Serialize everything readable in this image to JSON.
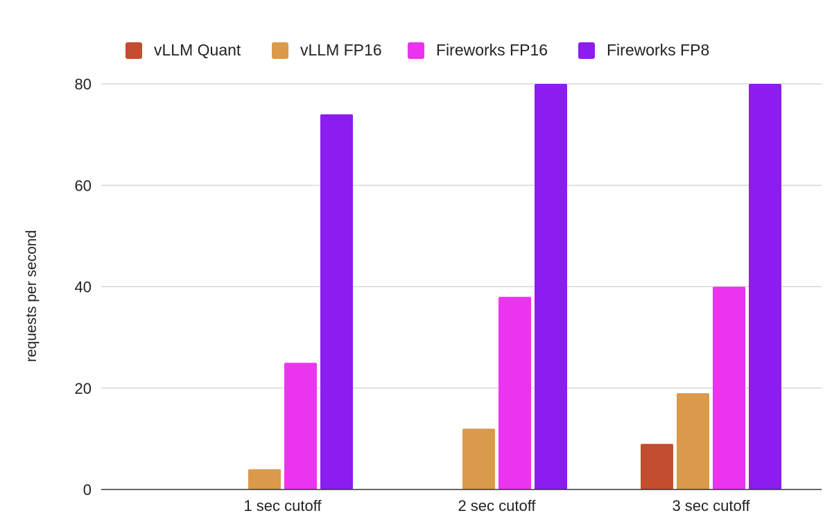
{
  "chart_data": {
    "type": "bar",
    "title": "",
    "xlabel": "",
    "ylabel": "requests per second",
    "ylim": [
      0,
      80
    ],
    "yticks": [
      0,
      20,
      40,
      60,
      80
    ],
    "grid": true,
    "legend_position": "top",
    "categories": [
      "1 sec cutoff",
      "2 sec cutoff",
      "3 sec cutoff"
    ],
    "series": [
      {
        "name": "vLLM Quant",
        "color": "#c34d2f",
        "values": [
          0,
          0,
          9
        ]
      },
      {
        "name": "vLLM FP16",
        "color": "#db994b",
        "values": [
          4,
          12,
          19
        ]
      },
      {
        "name": "Fireworks FP16",
        "color": "#e935f0",
        "values": [
          25,
          38,
          40
        ]
      },
      {
        "name": "Fireworks FP8",
        "color": "#8c1cf0",
        "values": [
          74,
          80,
          80
        ]
      }
    ]
  }
}
